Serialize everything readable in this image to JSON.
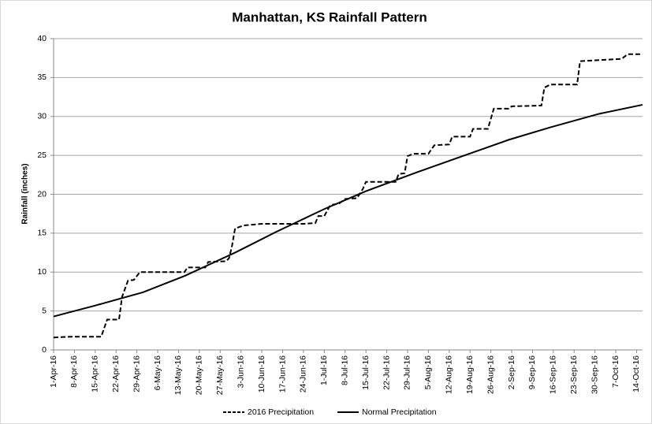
{
  "chart_data": {
    "type": "line",
    "title": "Manhattan, KS Rainfall Pattern",
    "y_label": "Rainfall (inches)",
    "xlim": [
      "2016-04-01",
      "2016-10-16"
    ],
    "xticks": [
      {
        "value": "2016-04-01",
        "label": "1-Apr-16"
      },
      {
        "value": "2016-04-08",
        "label": "8-Apr-16"
      },
      {
        "value": "2016-04-15",
        "label": "15-Apr-16"
      },
      {
        "value": "2016-04-22",
        "label": "22-Apr-16"
      },
      {
        "value": "2016-04-29",
        "label": "29-Apr-16"
      },
      {
        "value": "2016-05-06",
        "label": "6-May-16"
      },
      {
        "value": "2016-05-13",
        "label": "13-May-16"
      },
      {
        "value": "2016-05-20",
        "label": "20-May-16"
      },
      {
        "value": "2016-05-27",
        "label": "27-May-16"
      },
      {
        "value": "2016-06-03",
        "label": "3-Jun-16"
      },
      {
        "value": "2016-06-10",
        "label": "10-Jun-16"
      },
      {
        "value": "2016-06-17",
        "label": "17-Jun-16"
      },
      {
        "value": "2016-06-24",
        "label": "24-Jun-16"
      },
      {
        "value": "2016-07-01",
        "label": "1-Jul-16"
      },
      {
        "value": "2016-07-08",
        "label": "8-Jul-16"
      },
      {
        "value": "2016-07-15",
        "label": "15-Jul-16"
      },
      {
        "value": "2016-07-22",
        "label": "22-Jul-16"
      },
      {
        "value": "2016-07-29",
        "label": "29-Jul-16"
      },
      {
        "value": "2016-08-05",
        "label": "5-Aug-16"
      },
      {
        "value": "2016-08-12",
        "label": "12-Aug-16"
      },
      {
        "value": "2016-08-19",
        "label": "19-Aug-16"
      },
      {
        "value": "2016-08-26",
        "label": "26-Aug-16"
      },
      {
        "value": "2016-09-02",
        "label": "2-Sep-16"
      },
      {
        "value": "2016-09-09",
        "label": "9-Sep-16"
      },
      {
        "value": "2016-09-16",
        "label": "16-Sep-16"
      },
      {
        "value": "2016-09-23",
        "label": "23-Sep-16"
      },
      {
        "value": "2016-09-30",
        "label": "30-Sep-16"
      },
      {
        "value": "2016-10-07",
        "label": "7-Oct-16"
      },
      {
        "value": "2016-10-14",
        "label": "14-Oct-16"
      }
    ],
    "ylim": [
      0,
      40
    ],
    "yticks": [
      0,
      5,
      10,
      15,
      20,
      25,
      30,
      35,
      40
    ],
    "grid": true,
    "legend": "bottom",
    "series": [
      {
        "name": "2016 Precipitation",
        "color": "#000000",
        "dash": true,
        "x": [
          "2016-04-01",
          "2016-04-07",
          "2016-04-17",
          "2016-04-19",
          "2016-04-23",
          "2016-04-24",
          "2016-04-26",
          "2016-04-28",
          "2016-04-30",
          "2016-05-15",
          "2016-05-16",
          "2016-05-22",
          "2016-05-23",
          "2016-05-29",
          "2016-05-30",
          "2016-05-31",
          "2016-06-01",
          "2016-06-04",
          "2016-06-10",
          "2016-06-24",
          "2016-06-28",
          "2016-06-29",
          "2016-07-01",
          "2016-07-03",
          "2016-07-06",
          "2016-07-08",
          "2016-07-12",
          "2016-07-14",
          "2016-07-15",
          "2016-07-25",
          "2016-07-26",
          "2016-07-28",
          "2016-07-29",
          "2016-07-31",
          "2016-08-05",
          "2016-08-07",
          "2016-08-12",
          "2016-08-13",
          "2016-08-19",
          "2016-08-20",
          "2016-08-25",
          "2016-08-27",
          "2016-09-01",
          "2016-09-02",
          "2016-09-12",
          "2016-09-13",
          "2016-09-15",
          "2016-09-24",
          "2016-09-25",
          "2016-10-09",
          "2016-10-11",
          "2016-10-16"
        ],
        "values": [
          1.6,
          1.7,
          1.7,
          3.9,
          3.9,
          6.8,
          8.9,
          9.0,
          10.0,
          10.0,
          10.6,
          10.6,
          11.3,
          11.4,
          11.8,
          13.4,
          15.6,
          16.0,
          16.2,
          16.2,
          16.3,
          17.2,
          17.2,
          18.6,
          18.8,
          19.4,
          19.5,
          20.7,
          21.6,
          21.6,
          22.6,
          22.7,
          24.9,
          25.2,
          25.2,
          26.3,
          26.4,
          27.4,
          27.4,
          28.4,
          28.4,
          31.0,
          31.0,
          31.3,
          31.4,
          33.7,
          34.1,
          34.1,
          37.1,
          37.4,
          38.0,
          38.0
        ]
      },
      {
        "name": "Normal  Precipitation",
        "color": "#000000",
        "dash": false,
        "x": [
          "2016-04-01",
          "2016-04-15",
          "2016-05-01",
          "2016-05-15",
          "2016-06-01",
          "2016-06-15",
          "2016-07-01",
          "2016-07-15",
          "2016-08-01",
          "2016-08-15",
          "2016-09-01",
          "2016-09-15",
          "2016-10-01",
          "2016-10-16"
        ],
        "values": [
          4.3,
          5.7,
          7.4,
          9.5,
          12.5,
          15.2,
          18.1,
          20.4,
          22.8,
          24.7,
          27.0,
          28.6,
          30.3,
          31.5
        ]
      }
    ]
  }
}
